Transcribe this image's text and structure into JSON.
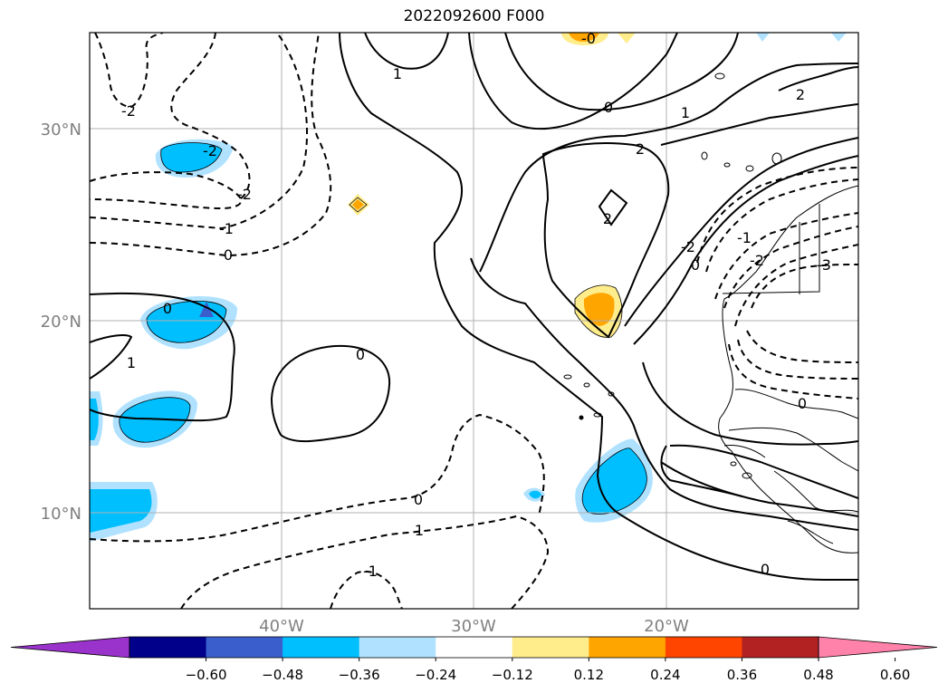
{
  "title": "2022092600 F000",
  "map": {
    "lat_labels": [
      "30°N",
      "20°N",
      "10°N"
    ],
    "lon_labels": [
      "40°W",
      "30°W",
      "20°W"
    ],
    "contour_labels": [
      {
        "text": "-2"
      },
      {
        "text": "-2"
      },
      {
        "text": "-1"
      },
      {
        "text": "0"
      },
      {
        "text": "1"
      },
      {
        "text": "-0"
      },
      {
        "text": "0"
      },
      {
        "text": "1"
      },
      {
        "text": "2"
      },
      {
        "text": "-2"
      },
      {
        "text": "2"
      },
      {
        "text": "2"
      },
      {
        "text": "0"
      },
      {
        "text": "0"
      },
      {
        "text": "1"
      },
      {
        "text": "0"
      },
      {
        "text": "1"
      },
      {
        "text": "0"
      },
      {
        "text": "-1"
      },
      {
        "text": "-2"
      },
      {
        "text": "0"
      },
      {
        "text": "-1"
      },
      {
        "text": "-2"
      },
      {
        "text": "-3"
      },
      {
        "text": "0"
      }
    ]
  },
  "colorbar": {
    "tick_labels": [
      "−0.60",
      "−0.48",
      "−0.36",
      "−0.24",
      "−0.12",
      "0.12",
      "0.24",
      "0.36",
      "0.48",
      "0.60"
    ],
    "colors": [
      "#9933cc",
      "#00008b",
      "#3a5fcd",
      "#00bfff",
      "#b0e2ff",
      "#ffffff",
      "#ffec8b",
      "#ffa500",
      "#ff4500",
      "#b22222",
      "#ff82ab"
    ]
  }
}
